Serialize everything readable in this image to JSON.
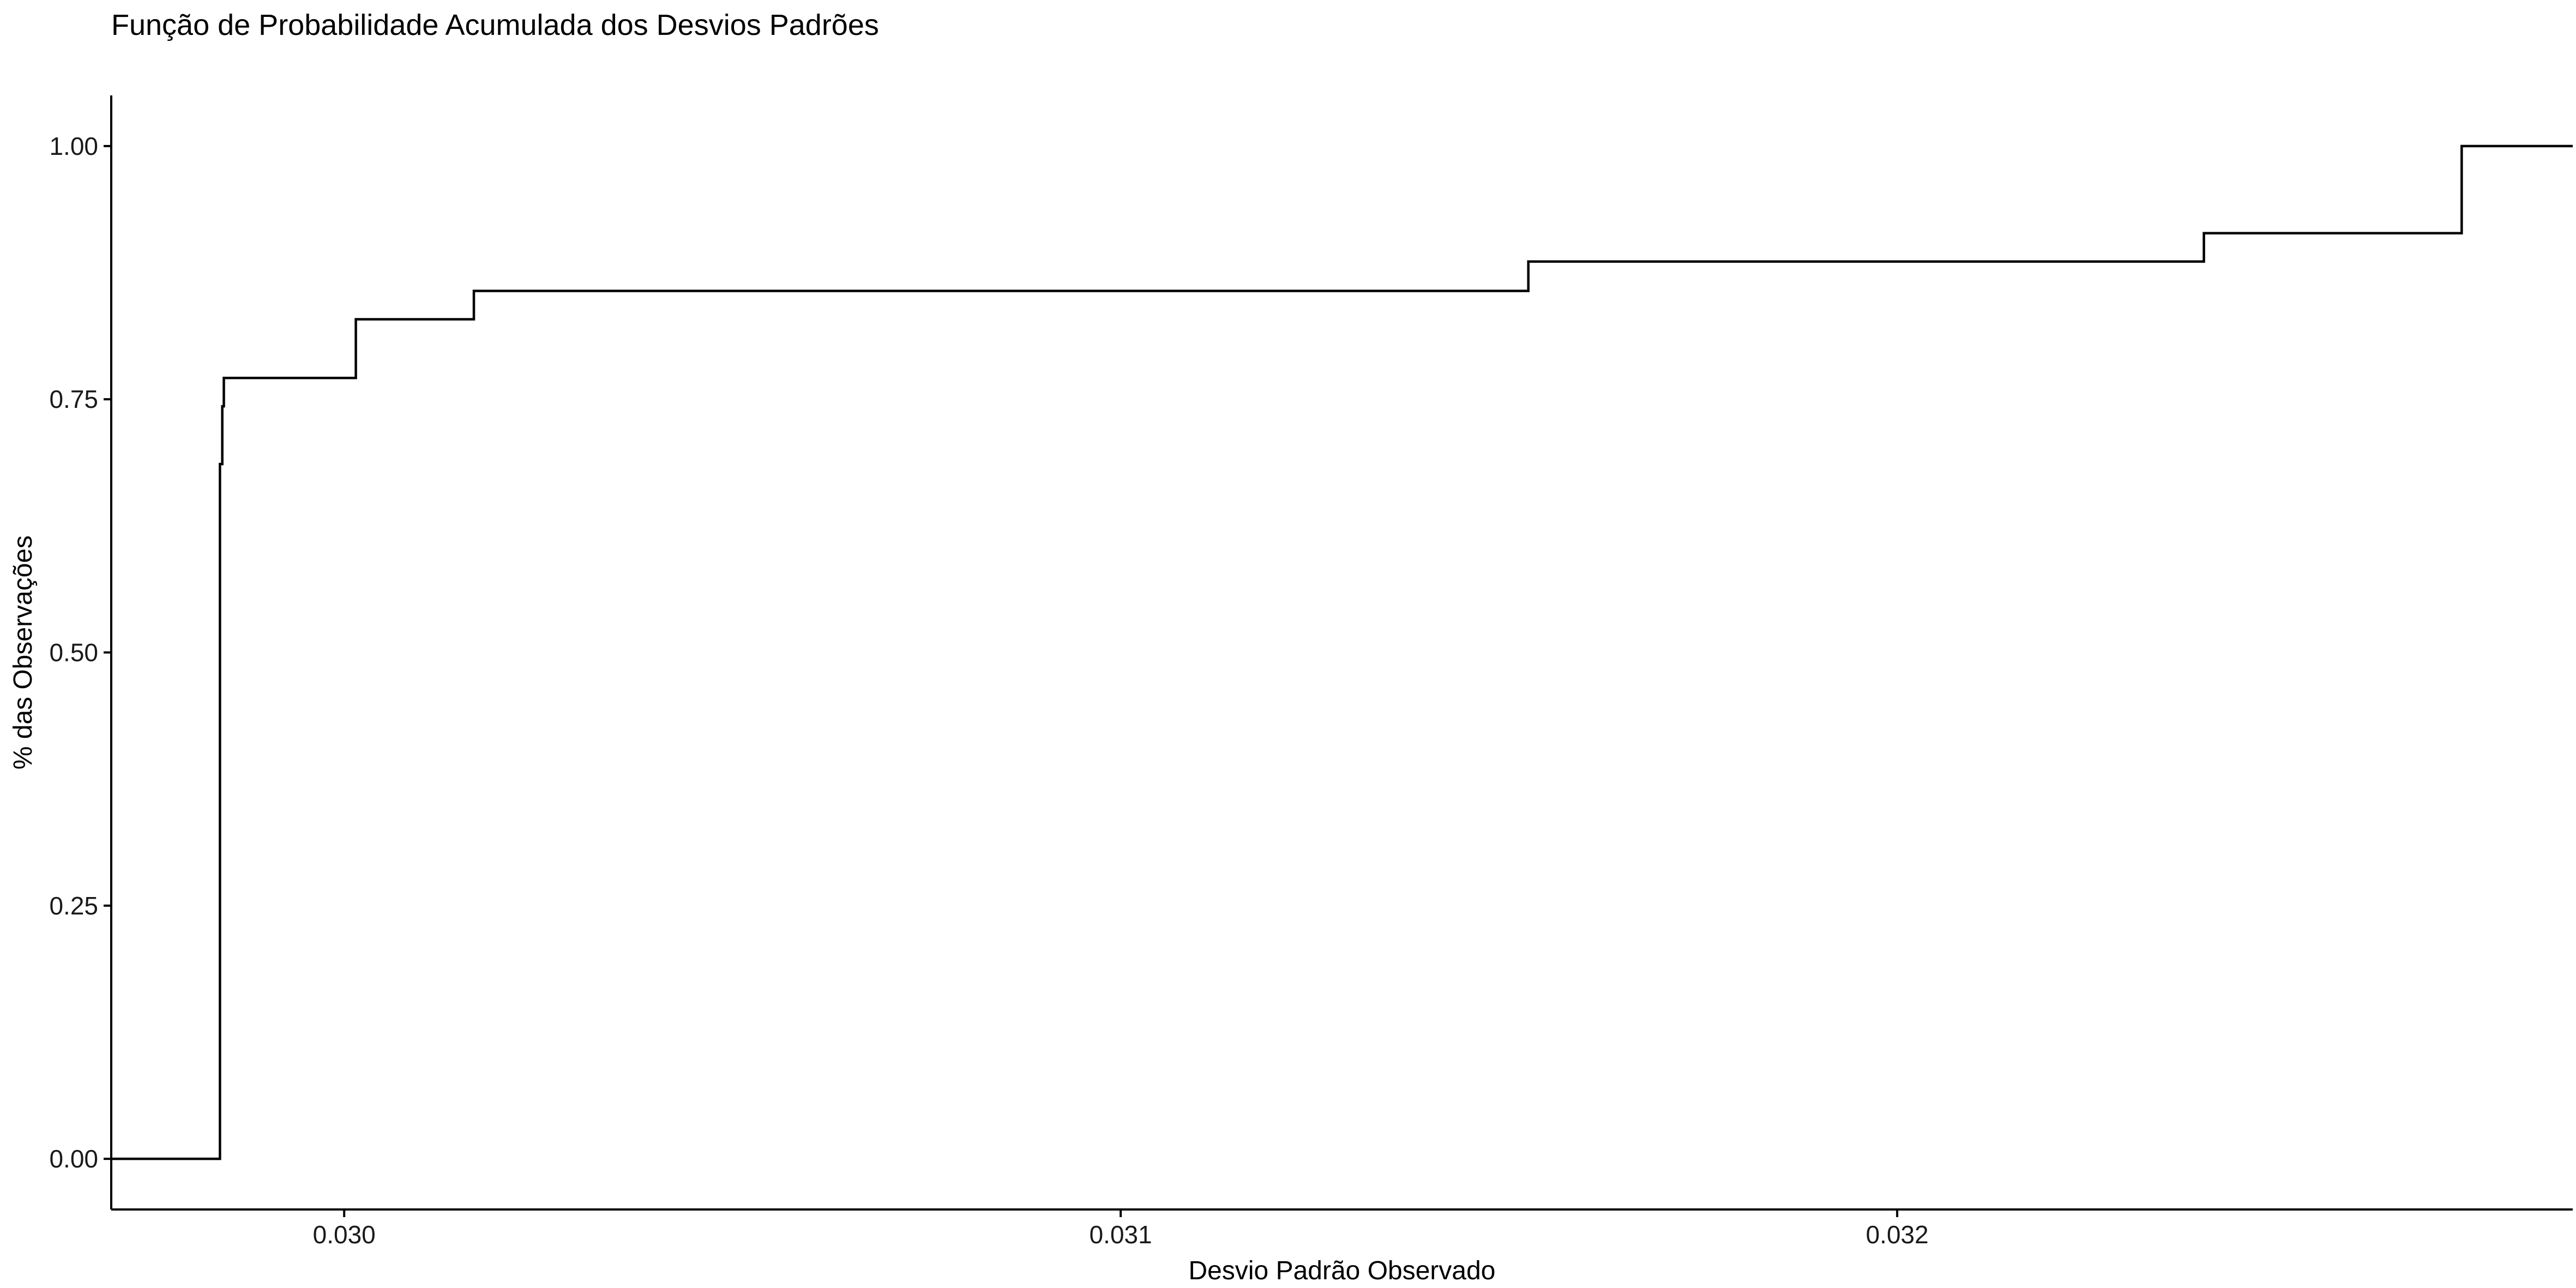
{
  "chart_data": {
    "type": "line",
    "subtype": "step-ecdf",
    "title": "Função de Probabilidade Acumulada dos Desvios Padrões",
    "xlabel": "Desvio Padrão Observado",
    "ylabel": "% das Observações",
    "xlim": [
      0.0297,
      0.03287
    ],
    "ylim": [
      -0.05,
      1.05
    ],
    "x_ticks": [
      0.03,
      0.031,
      0.032
    ],
    "x_tick_labels": [
      "0.030",
      "0.031",
      "0.032"
    ],
    "y_ticks": [
      0.0,
      0.25,
      0.5,
      0.75,
      1.0
    ],
    "y_tick_labels": [
      "0.00",
      "0.25",
      "0.50",
      "0.75",
      "1.00"
    ],
    "grid": false,
    "legend": "none",
    "line_color": "#000000",
    "series": [
      {
        "x": [
          0.0297,
          0.02984,
          0.02984,
          0.029843,
          0.029843,
          0.029845,
          0.029845,
          0.030015,
          0.030015,
          0.030167,
          0.030167,
          0.031525,
          0.031525,
          0.032395,
          0.032395,
          0.032727,
          0.032727,
          0.03287
        ],
        "y": [
          0.0,
          0.0,
          0.686,
          0.686,
          0.743,
          0.743,
          0.771,
          0.771,
          0.829,
          0.829,
          0.857,
          0.857,
          0.886,
          0.886,
          0.914,
          0.914,
          1.0,
          1.0
        ]
      }
    ]
  }
}
